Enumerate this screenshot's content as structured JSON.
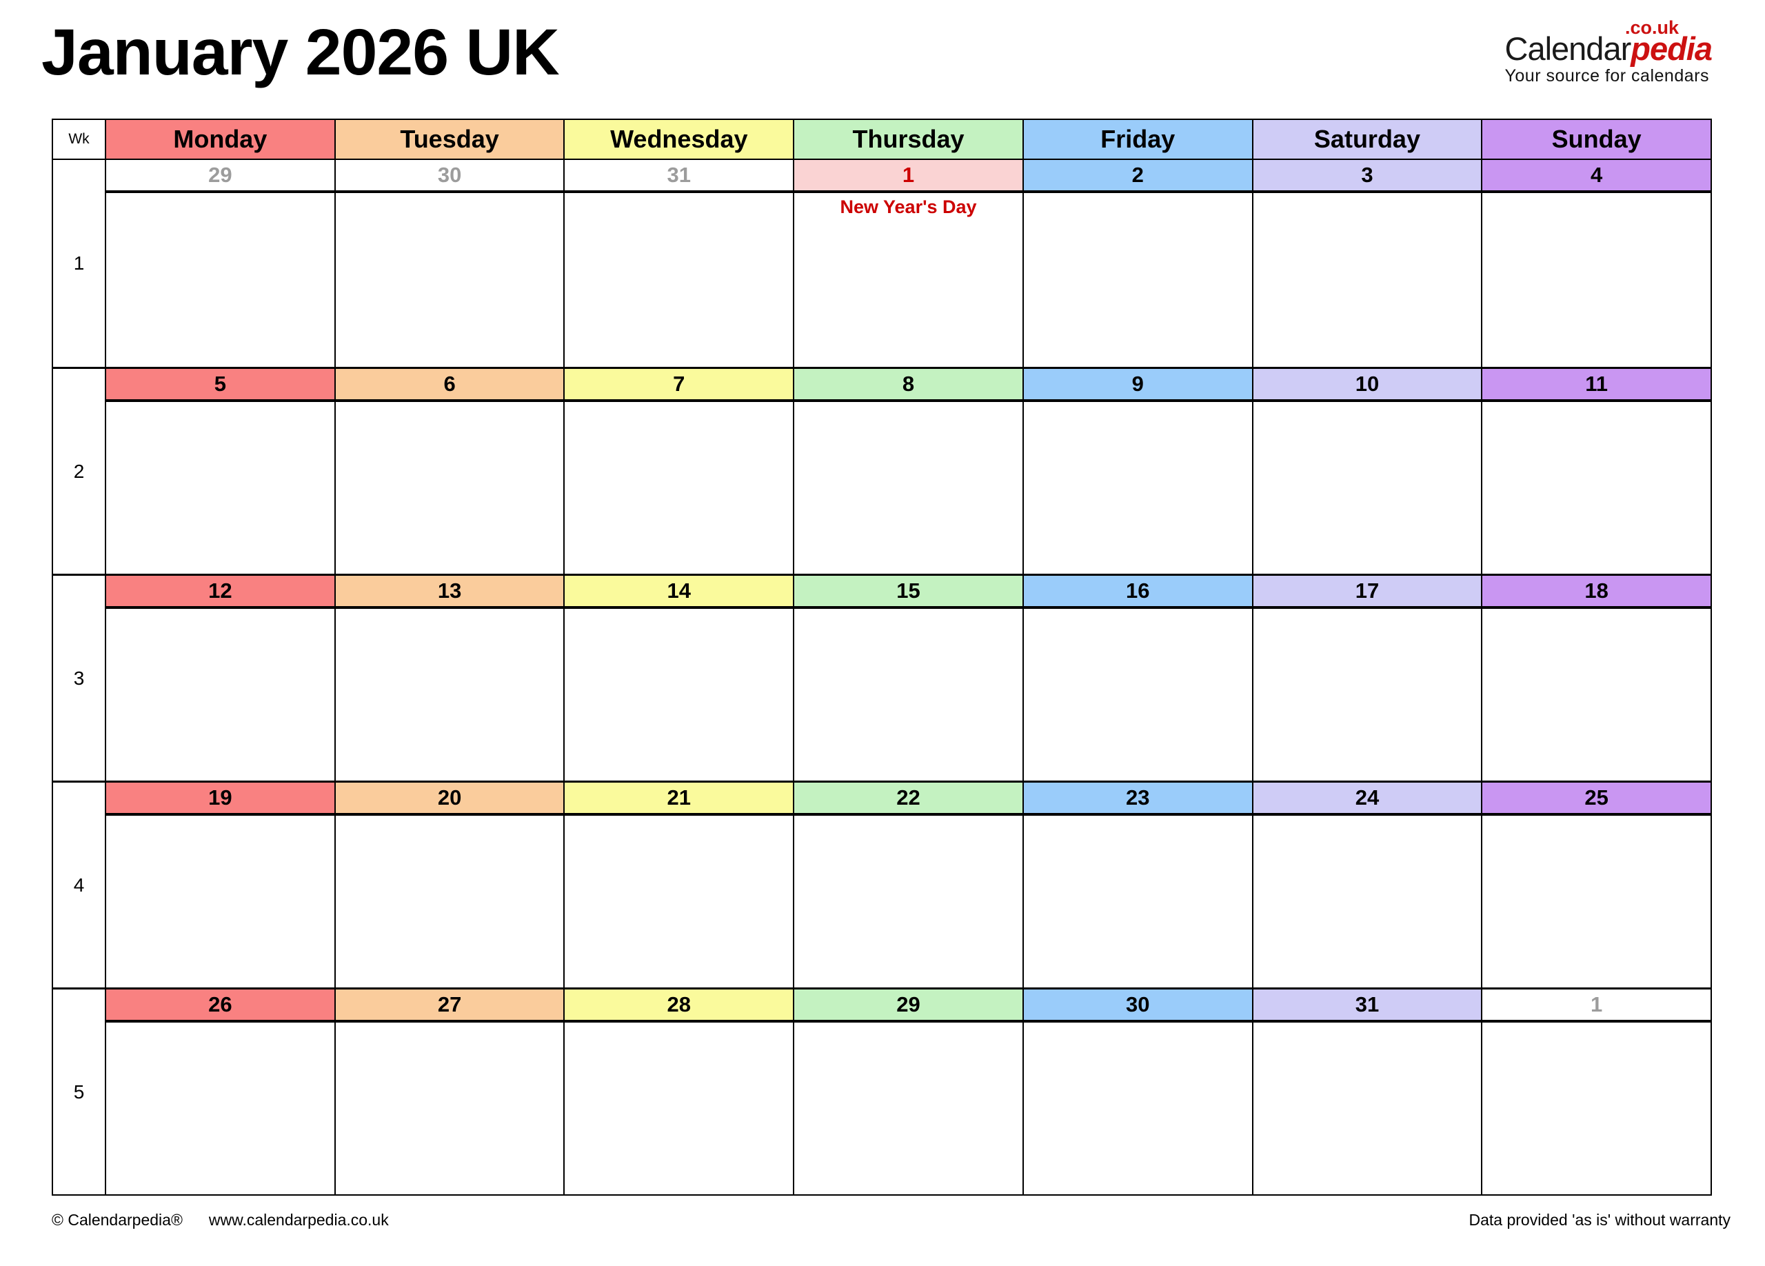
{
  "page": {
    "title": "January 2026 UK"
  },
  "logo": {
    "name_black": "Calendar",
    "name_red": "pedia",
    "tld": ".co.uk",
    "tagline": "Your source for calendars"
  },
  "table": {
    "wk_label": "Wk",
    "day_headers": [
      "Monday",
      "Tuesday",
      "Wednesday",
      "Thursday",
      "Friday",
      "Saturday",
      "Sunday"
    ],
    "weeks": [
      {
        "wk": "1",
        "cells": [
          {
            "day": "29",
            "type": "prev"
          },
          {
            "day": "30",
            "type": "prev"
          },
          {
            "day": "31",
            "type": "prev"
          },
          {
            "day": "1",
            "type": "holiday",
            "note": "New Year's Day"
          },
          {
            "day": "2",
            "type": "normal"
          },
          {
            "day": "3",
            "type": "normal"
          },
          {
            "day": "4",
            "type": "normal"
          }
        ]
      },
      {
        "wk": "2",
        "cells": [
          {
            "day": "5",
            "type": "normal"
          },
          {
            "day": "6",
            "type": "normal"
          },
          {
            "day": "7",
            "type": "normal"
          },
          {
            "day": "8",
            "type": "normal"
          },
          {
            "day": "9",
            "type": "normal"
          },
          {
            "day": "10",
            "type": "normal"
          },
          {
            "day": "11",
            "type": "normal"
          }
        ]
      },
      {
        "wk": "3",
        "cells": [
          {
            "day": "12",
            "type": "normal"
          },
          {
            "day": "13",
            "type": "normal"
          },
          {
            "day": "14",
            "type": "normal"
          },
          {
            "day": "15",
            "type": "normal"
          },
          {
            "day": "16",
            "type": "normal"
          },
          {
            "day": "17",
            "type": "normal"
          },
          {
            "day": "18",
            "type": "normal"
          }
        ]
      },
      {
        "wk": "4",
        "cells": [
          {
            "day": "19",
            "type": "normal"
          },
          {
            "day": "20",
            "type": "normal"
          },
          {
            "day": "21",
            "type": "normal"
          },
          {
            "day": "22",
            "type": "normal"
          },
          {
            "day": "23",
            "type": "normal"
          },
          {
            "day": "24",
            "type": "normal"
          },
          {
            "day": "25",
            "type": "normal"
          }
        ]
      },
      {
        "wk": "5",
        "cells": [
          {
            "day": "26",
            "type": "normal"
          },
          {
            "day": "27",
            "type": "normal"
          },
          {
            "day": "28",
            "type": "normal"
          },
          {
            "day": "29",
            "type": "normal"
          },
          {
            "day": "30",
            "type": "normal"
          },
          {
            "day": "31",
            "type": "normal"
          },
          {
            "day": "1",
            "type": "next"
          }
        ]
      }
    ]
  },
  "footer": {
    "copyright": "© Calendarpedia®",
    "url": "www.calendarpedia.co.uk",
    "disclaimer": "Data provided 'as is' without warranty"
  },
  "colors": {
    "monday": "#F98181",
    "tuesday": "#FACC9C",
    "wednesday": "#FAFA9C",
    "thursday": "#C4F2C1",
    "friday": "#9ACCFA",
    "saturday": "#CFCCF6",
    "sunday": "#C996F2",
    "holiday_bg": "#FAD3D3",
    "holiday_text": "#CC0000",
    "adjacent_month_text": "#9C9C9C",
    "logo_red": "#CC1111"
  }
}
